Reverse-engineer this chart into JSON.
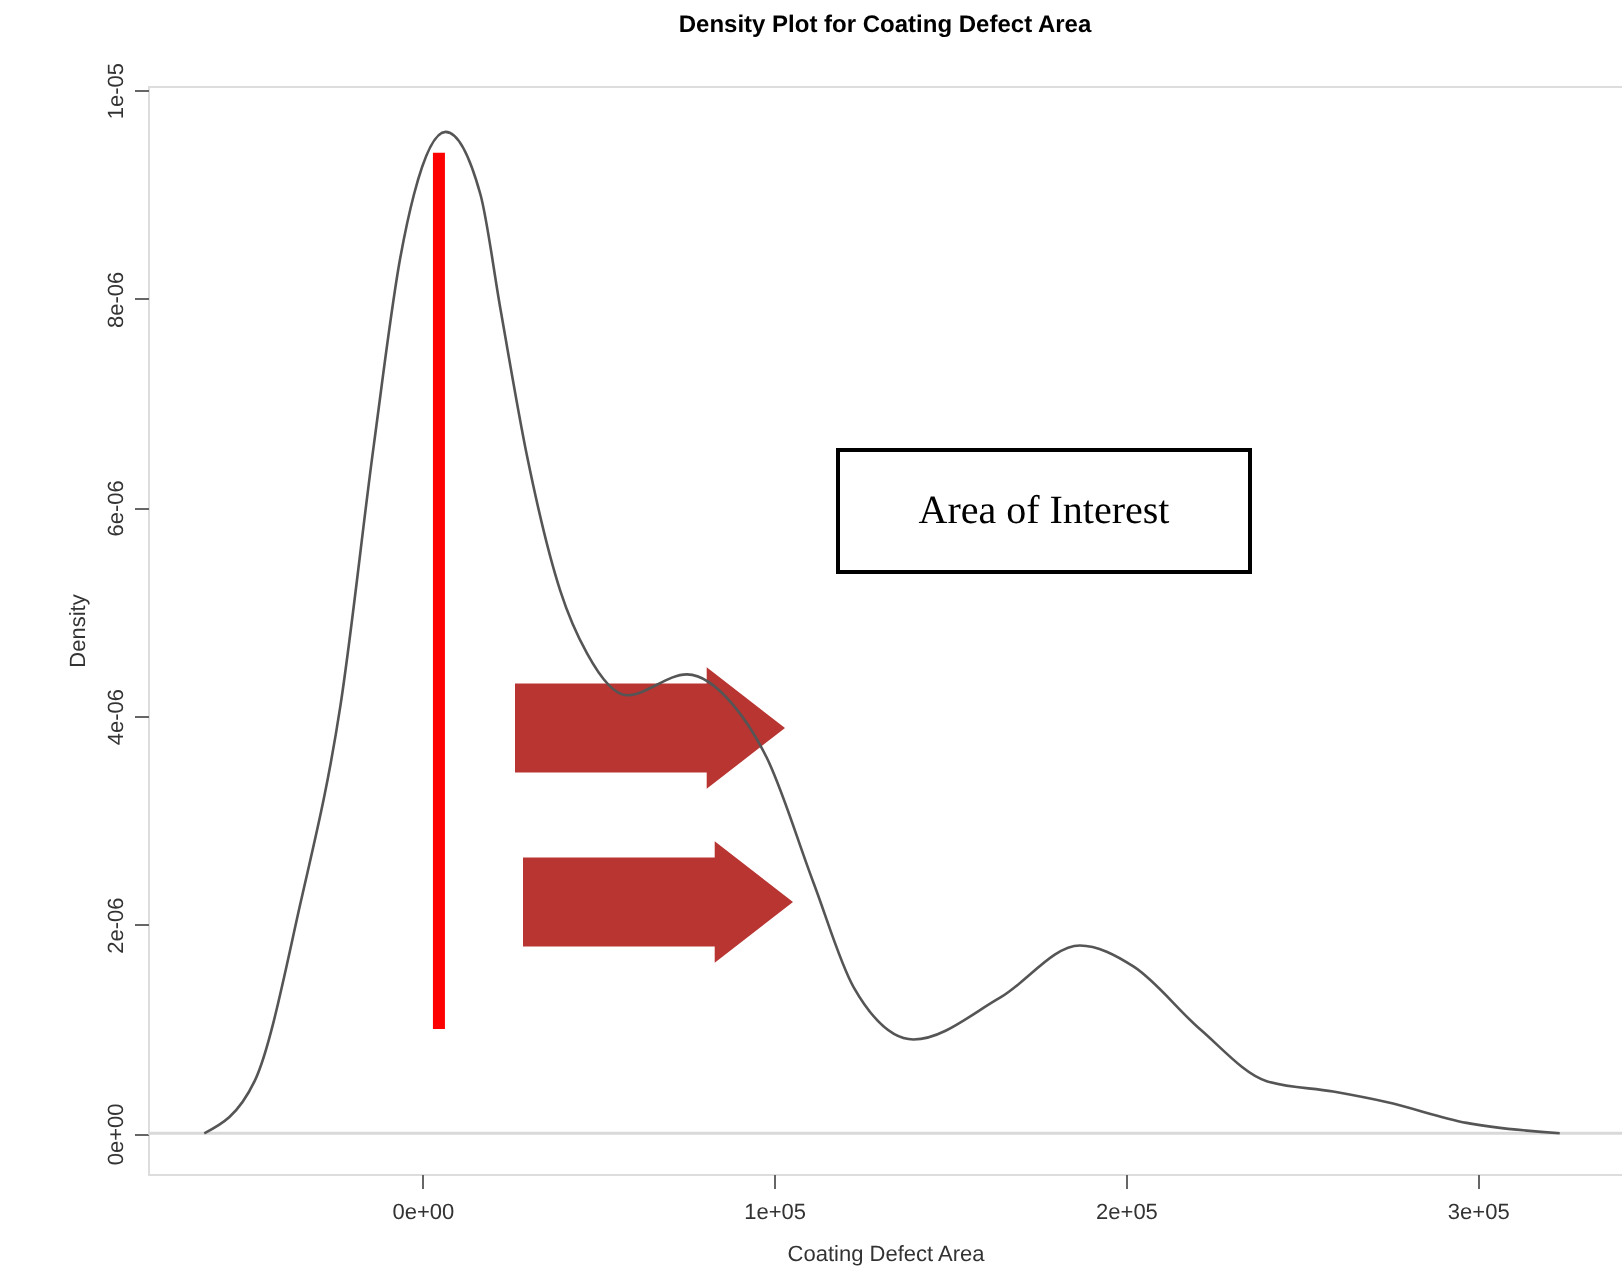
{
  "chart_data": {
    "type": "line",
    "title": "Density Plot for Coating Defect Area",
    "xlabel": "Coating Defect Area",
    "ylabel": "Density",
    "xlim": [
      -78000,
      341000
    ],
    "ylim": [
      -3.9e-07,
      1.004e-05
    ],
    "xticks": [
      {
        "value": 0,
        "label": "0e+00"
      },
      {
        "value": 100000,
        "label": "1e+05"
      },
      {
        "value": 200000,
        "label": "2e+05"
      },
      {
        "value": 300000,
        "label": "3e+05"
      }
    ],
    "yticks": [
      {
        "value": 0,
        "label": "0e+00"
      },
      {
        "value": 2e-06,
        "label": "2e-06"
      },
      {
        "value": 4e-06,
        "label": "4e-06"
      },
      {
        "value": 6e-06,
        "label": "6e-06"
      },
      {
        "value": 8e-06,
        "label": "8e-06"
      },
      {
        "value": 1e-05,
        "label": "1e-05"
      }
    ],
    "series": [
      {
        "color": "#555555",
        "x": [
          -62000,
          -47700,
          -34700,
          -23300,
          -13800,
          -6250,
          -2400,
          6600,
          16500,
          22200,
          29700,
          39200,
          46800,
          58100,
          75200,
          88500,
          97900,
          111200,
          122600,
          139600,
          164200,
          186900,
          202100,
          221000,
          240000,
          258900,
          274000,
          296800,
          323300
        ],
        "values": [
          0,
          5e-07,
          2.2e-06,
          4.1e-06,
          6.6e-06,
          8.4e-06,
          9e-06,
          9.6e-06,
          9e-06,
          7.9e-06,
          6.5e-06,
          5.2e-06,
          4.6e-06,
          4.2e-06,
          4.4e-06,
          4.1e-06,
          3.6e-06,
          2.4e-06,
          1.4e-06,
          9e-07,
          1.3e-06,
          1.8e-06,
          1.6e-06,
          1e-06,
          5e-07,
          4e-07,
          3e-07,
          1e-07,
          0
        ]
      },
      {
        "type": "line",
        "color": "#ff0000",
        "x": [
          4700,
          4700
        ],
        "values": [
          9.4e-06,
          1e-06
        ]
      }
    ],
    "ref_lines": [
      {
        "axis": "y",
        "value": 0,
        "color": "#d9d9d9"
      }
    ],
    "annotations": [
      "Area of Interest"
    ],
    "grid": false
  }
}
